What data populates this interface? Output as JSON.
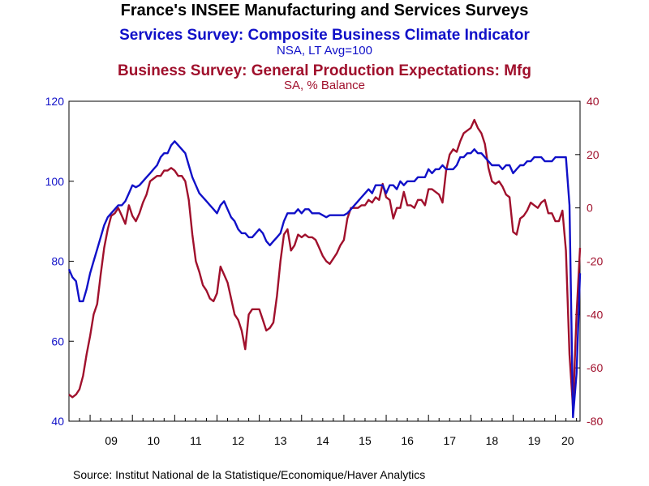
{
  "chart_data": {
    "type": "line",
    "title": "France's INSEE Manufacturing and Services Surveys",
    "subtitles": [
      {
        "text": "Services Survey: Composite Business Climate Indicator",
        "unit": "NSA, LT Avg=100",
        "color": "#1010c8"
      },
      {
        "text": "Business Survey: General Production Expectations: Mfg",
        "unit": "SA, % Balance",
        "color": "#a0102c"
      }
    ],
    "source": "Source:  Institut National de la Statistique/Economique/Haver Analytics",
    "x_axis": {
      "start": 2008.5,
      "end": 2020.583,
      "tick_labels": [
        "09",
        "10",
        "11",
        "12",
        "13",
        "14",
        "15",
        "16",
        "17",
        "18",
        "19",
        "20"
      ],
      "tick_years": [
        2009,
        2010,
        2011,
        2012,
        2013,
        2014,
        2015,
        2016,
        2017,
        2018,
        2019,
        2020
      ]
    },
    "left_axis": {
      "range": [
        40,
        120
      ],
      "ticks": [
        "40",
        "60",
        "80",
        "100",
        "120"
      ],
      "color": "#1010c8"
    },
    "right_axis": {
      "range": [
        -80,
        40
      ],
      "ticks": [
        "-80",
        "-60",
        "-40",
        "-20",
        "0",
        "20",
        "40"
      ],
      "color": "#a0102c"
    },
    "grid": false,
    "series": [
      {
        "axis": "left",
        "color": "#1010c8",
        "points": [
          [
            2008.5,
            78
          ],
          [
            2008.583,
            76
          ],
          [
            2008.667,
            75
          ],
          [
            2008.75,
            70
          ],
          [
            2008.833,
            70
          ],
          [
            2008.917,
            73
          ],
          [
            2009.0,
            77
          ],
          [
            2009.083,
            80
          ],
          [
            2009.167,
            83
          ],
          [
            2009.25,
            86
          ],
          [
            2009.333,
            89
          ],
          [
            2009.417,
            91
          ],
          [
            2009.5,
            92
          ],
          [
            2009.583,
            93
          ],
          [
            2009.667,
            94
          ],
          [
            2009.75,
            94
          ],
          [
            2009.833,
            95
          ],
          [
            2009.917,
            97
          ],
          [
            2010.0,
            99
          ],
          [
            2010.083,
            98.5
          ],
          [
            2010.167,
            99
          ],
          [
            2010.25,
            100
          ],
          [
            2010.333,
            101
          ],
          [
            2010.417,
            102
          ],
          [
            2010.5,
            103
          ],
          [
            2010.583,
            104
          ],
          [
            2010.667,
            106
          ],
          [
            2010.75,
            107
          ],
          [
            2010.833,
            107
          ],
          [
            2010.917,
            109
          ],
          [
            2011.0,
            110
          ],
          [
            2011.083,
            109
          ],
          [
            2011.167,
            108
          ],
          [
            2011.25,
            107
          ],
          [
            2011.333,
            104
          ],
          [
            2011.417,
            101
          ],
          [
            2011.5,
            99
          ],
          [
            2011.583,
            97
          ],
          [
            2011.667,
            96
          ],
          [
            2011.75,
            95
          ],
          [
            2011.833,
            94
          ],
          [
            2011.917,
            93
          ],
          [
            2012.0,
            92
          ],
          [
            2012.083,
            94
          ],
          [
            2012.167,
            95
          ],
          [
            2012.25,
            93
          ],
          [
            2012.333,
            91
          ],
          [
            2012.417,
            90
          ],
          [
            2012.5,
            88
          ],
          [
            2012.583,
            87
          ],
          [
            2012.667,
            87
          ],
          [
            2012.75,
            86
          ],
          [
            2012.833,
            86
          ],
          [
            2012.917,
            87
          ],
          [
            2013.0,
            88
          ],
          [
            2013.083,
            87
          ],
          [
            2013.167,
            85
          ],
          [
            2013.25,
            84
          ],
          [
            2013.333,
            85
          ],
          [
            2013.417,
            86
          ],
          [
            2013.5,
            87
          ],
          [
            2013.583,
            90
          ],
          [
            2013.667,
            92
          ],
          [
            2013.75,
            92
          ],
          [
            2013.833,
            92
          ],
          [
            2013.917,
            93
          ],
          [
            2014.0,
            92
          ],
          [
            2014.083,
            93
          ],
          [
            2014.167,
            93
          ],
          [
            2014.25,
            92
          ],
          [
            2014.333,
            92
          ],
          [
            2014.417,
            92
          ],
          [
            2014.5,
            91.5
          ],
          [
            2014.583,
            91
          ],
          [
            2014.667,
            91.5
          ],
          [
            2014.75,
            91.5
          ],
          [
            2014.833,
            91.5
          ],
          [
            2014.917,
            91.5
          ],
          [
            2015.0,
            91.5
          ],
          [
            2015.083,
            92
          ],
          [
            2015.167,
            93
          ],
          [
            2015.25,
            94
          ],
          [
            2015.333,
            95
          ],
          [
            2015.417,
            96
          ],
          [
            2015.5,
            97
          ],
          [
            2015.583,
            98
          ],
          [
            2015.667,
            97
          ],
          [
            2015.75,
            99
          ],
          [
            2015.833,
            99
          ],
          [
            2015.917,
            99
          ],
          [
            2016.0,
            97
          ],
          [
            2016.083,
            99
          ],
          [
            2016.167,
            99
          ],
          [
            2016.25,
            98
          ],
          [
            2016.333,
            100
          ],
          [
            2016.417,
            99
          ],
          [
            2016.5,
            100
          ],
          [
            2016.583,
            100
          ],
          [
            2016.667,
            100
          ],
          [
            2016.75,
            101
          ],
          [
            2016.833,
            101
          ],
          [
            2016.917,
            101
          ],
          [
            2017.0,
            103
          ],
          [
            2017.083,
            102
          ],
          [
            2017.167,
            103
          ],
          [
            2017.25,
            103
          ],
          [
            2017.333,
            104
          ],
          [
            2017.417,
            103
          ],
          [
            2017.5,
            103
          ],
          [
            2017.583,
            103
          ],
          [
            2017.667,
            104
          ],
          [
            2017.75,
            106
          ],
          [
            2017.833,
            106
          ],
          [
            2017.917,
            107
          ],
          [
            2018.0,
            107
          ],
          [
            2018.083,
            108
          ],
          [
            2018.167,
            107
          ],
          [
            2018.25,
            107
          ],
          [
            2018.333,
            106
          ],
          [
            2018.417,
            105
          ],
          [
            2018.5,
            104
          ],
          [
            2018.583,
            104
          ],
          [
            2018.667,
            104
          ],
          [
            2018.75,
            103
          ],
          [
            2018.833,
            104
          ],
          [
            2018.917,
            104
          ],
          [
            2019.0,
            102
          ],
          [
            2019.083,
            103
          ],
          [
            2019.167,
            104
          ],
          [
            2019.25,
            104
          ],
          [
            2019.333,
            105
          ],
          [
            2019.417,
            105
          ],
          [
            2019.5,
            106
          ],
          [
            2019.583,
            106
          ],
          [
            2019.667,
            106
          ],
          [
            2019.75,
            105
          ],
          [
            2019.833,
            105
          ],
          [
            2019.917,
            105
          ],
          [
            2020.0,
            106
          ],
          [
            2020.083,
            106
          ],
          [
            2020.167,
            106
          ],
          [
            2020.25,
            106
          ],
          [
            2020.333,
            94
          ],
          [
            2020.417,
            41
          ],
          [
            2020.5,
            52
          ],
          [
            2020.583,
            77
          ]
        ]
      },
      {
        "axis": "right",
        "color": "#a0102c",
        "points": [
          [
            2008.5,
            -70
          ],
          [
            2008.583,
            -71
          ],
          [
            2008.667,
            -70
          ],
          [
            2008.75,
            -68
          ],
          [
            2008.833,
            -63
          ],
          [
            2008.917,
            -55
          ],
          [
            2009.0,
            -48
          ],
          [
            2009.083,
            -40
          ],
          [
            2009.167,
            -36
          ],
          [
            2009.25,
            -25
          ],
          [
            2009.333,
            -15
          ],
          [
            2009.417,
            -8
          ],
          [
            2009.5,
            -3
          ],
          [
            2009.583,
            -2
          ],
          [
            2009.667,
            0
          ],
          [
            2009.75,
            -3
          ],
          [
            2009.833,
            -6
          ],
          [
            2009.917,
            1
          ],
          [
            2010.0,
            -3
          ],
          [
            2010.083,
            -5
          ],
          [
            2010.167,
            -2
          ],
          [
            2010.25,
            2
          ],
          [
            2010.333,
            5
          ],
          [
            2010.417,
            10
          ],
          [
            2010.5,
            11
          ],
          [
            2010.583,
            12
          ],
          [
            2010.667,
            12
          ],
          [
            2010.75,
            14
          ],
          [
            2010.833,
            14
          ],
          [
            2010.917,
            15
          ],
          [
            2011.0,
            14
          ],
          [
            2011.083,
            12
          ],
          [
            2011.167,
            12
          ],
          [
            2011.25,
            10
          ],
          [
            2011.333,
            3
          ],
          [
            2011.417,
            -10
          ],
          [
            2011.5,
            -20
          ],
          [
            2011.583,
            -24
          ],
          [
            2011.667,
            -29
          ],
          [
            2011.75,
            -31
          ],
          [
            2011.833,
            -34
          ],
          [
            2011.917,
            -35
          ],
          [
            2012.0,
            -32
          ],
          [
            2012.083,
            -22
          ],
          [
            2012.167,
            -25
          ],
          [
            2012.25,
            -28
          ],
          [
            2012.333,
            -34
          ],
          [
            2012.417,
            -40
          ],
          [
            2012.5,
            -42
          ],
          [
            2012.583,
            -46
          ],
          [
            2012.667,
            -53
          ],
          [
            2012.75,
            -40
          ],
          [
            2012.833,
            -38
          ],
          [
            2012.917,
            -38
          ],
          [
            2013.0,
            -38
          ],
          [
            2013.083,
            -42
          ],
          [
            2013.167,
            -46
          ],
          [
            2013.25,
            -45
          ],
          [
            2013.333,
            -43
          ],
          [
            2013.417,
            -33
          ],
          [
            2013.5,
            -20
          ],
          [
            2013.583,
            -10
          ],
          [
            2013.667,
            -8
          ],
          [
            2013.75,
            -16
          ],
          [
            2013.833,
            -14
          ],
          [
            2013.917,
            -10
          ],
          [
            2014.0,
            -11
          ],
          [
            2014.083,
            -10
          ],
          [
            2014.167,
            -11
          ],
          [
            2014.25,
            -11
          ],
          [
            2014.333,
            -12
          ],
          [
            2014.417,
            -15
          ],
          [
            2014.5,
            -18
          ],
          [
            2014.583,
            -20
          ],
          [
            2014.667,
            -21
          ],
          [
            2014.75,
            -19
          ],
          [
            2014.833,
            -17
          ],
          [
            2014.917,
            -14
          ],
          [
            2015.0,
            -12
          ],
          [
            2015.083,
            -4
          ],
          [
            2015.167,
            0
          ],
          [
            2015.25,
            0
          ],
          [
            2015.333,
            0
          ],
          [
            2015.417,
            1
          ],
          [
            2015.5,
            1
          ],
          [
            2015.583,
            3
          ],
          [
            2015.667,
            2
          ],
          [
            2015.75,
            4
          ],
          [
            2015.833,
            3
          ],
          [
            2015.917,
            9
          ],
          [
            2016.0,
            4
          ],
          [
            2016.083,
            3
          ],
          [
            2016.167,
            -4
          ],
          [
            2016.25,
            0
          ],
          [
            2016.333,
            0
          ],
          [
            2016.417,
            6
          ],
          [
            2016.5,
            1
          ],
          [
            2016.583,
            1
          ],
          [
            2016.667,
            0
          ],
          [
            2016.75,
            3
          ],
          [
            2016.833,
            3
          ],
          [
            2016.917,
            1
          ],
          [
            2017.0,
            7
          ],
          [
            2017.083,
            7
          ],
          [
            2017.167,
            6
          ],
          [
            2017.25,
            5
          ],
          [
            2017.333,
            2
          ],
          [
            2017.417,
            14
          ],
          [
            2017.5,
            20
          ],
          [
            2017.583,
            22
          ],
          [
            2017.667,
            21
          ],
          [
            2017.75,
            25
          ],
          [
            2017.833,
            28
          ],
          [
            2017.917,
            29
          ],
          [
            2018.0,
            30
          ],
          [
            2018.083,
            33
          ],
          [
            2018.167,
            30
          ],
          [
            2018.25,
            28
          ],
          [
            2018.333,
            24
          ],
          [
            2018.417,
            15
          ],
          [
            2018.5,
            10
          ],
          [
            2018.583,
            9
          ],
          [
            2018.667,
            10
          ],
          [
            2018.75,
            8
          ],
          [
            2018.833,
            5
          ],
          [
            2018.917,
            4
          ],
          [
            2019.0,
            -9
          ],
          [
            2019.083,
            -10
          ],
          [
            2019.167,
            -4
          ],
          [
            2019.25,
            -3
          ],
          [
            2019.333,
            -1
          ],
          [
            2019.417,
            2
          ],
          [
            2019.5,
            1
          ],
          [
            2019.583,
            0
          ],
          [
            2019.667,
            2
          ],
          [
            2019.75,
            3
          ],
          [
            2019.833,
            -2
          ],
          [
            2019.917,
            -2
          ],
          [
            2020.0,
            -5
          ],
          [
            2020.083,
            -5
          ],
          [
            2020.167,
            -1
          ],
          [
            2020.25,
            -16
          ],
          [
            2020.333,
            -55
          ],
          [
            2020.417,
            -75
          ],
          [
            2020.5,
            -40
          ],
          [
            2020.583,
            -15
          ]
        ]
      }
    ]
  }
}
